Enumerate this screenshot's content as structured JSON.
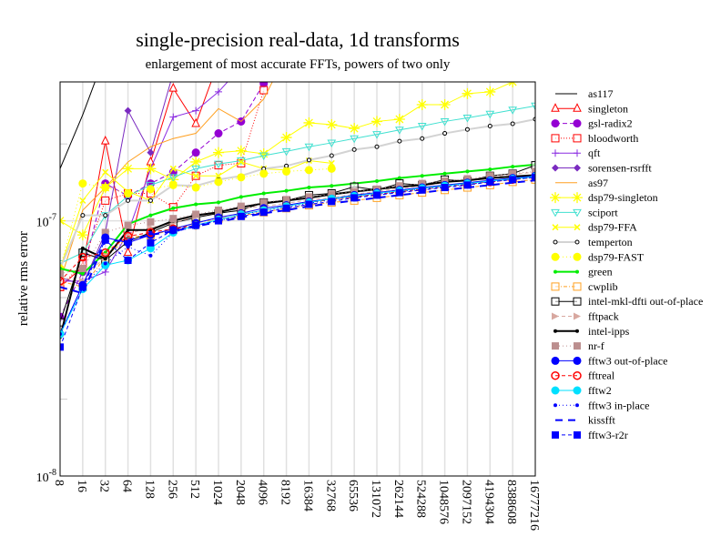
{
  "chart_data": {
    "type": "line",
    "title": "single-precision real-data, 1d transforms",
    "subtitle": "enlargement of most accurate FFTs, powers of two only",
    "xlabel": "",
    "ylabel": "relative rms error",
    "x_scale": "log2",
    "y_scale": "log10",
    "ylim": [
      1e-08,
      3.5e-07
    ],
    "y_ticks": [
      {
        "value": 1e-08,
        "base": "10",
        "exp": "-8"
      },
      {
        "value": 1e-07,
        "base": "10",
        "exp": "-7"
      }
    ],
    "y_minor_ticks": [
      2e-08,
      5e-08,
      2e-07
    ],
    "grid": true,
    "legend_position": "right",
    "x": [
      8,
      16,
      32,
      64,
      128,
      256,
      512,
      1024,
      2048,
      4096,
      8192,
      16384,
      32768,
      65536,
      131072,
      262144,
      524288,
      1048576,
      2097152,
      4194304,
      8388608,
      16777216
    ],
    "x_tick_labels": [
      "8",
      "16",
      "32",
      "64",
      "128",
      "256",
      "512",
      "1024",
      "2048",
      "4096",
      "8192",
      "16384",
      "32768",
      "65536",
      "131072",
      "262144",
      "524288",
      "1048576",
      "2097152",
      "4194304",
      "8388608",
      "16777216"
    ],
    "series": [
      {
        "name": "as117",
        "color": "#000000",
        "dash": "",
        "marker": "none",
        "width": 1,
        "values": [
          1.6e-07,
          2.6e-07,
          4.5e-07,
          7e-07
        ]
      },
      {
        "name": "singleton",
        "color": "#ff0000",
        "dash": "",
        "marker": "triangle-up-open",
        "width": 1,
        "values": [
          5.5e-08,
          6.6e-08,
          2.05e-07,
          7.5e-08,
          1.7e-07,
          3.3e-07,
          2.4e-07,
          4.2e-07,
          6e-07
        ]
      },
      {
        "name": "gsl-radix2",
        "color": "#9400d3",
        "dash": "5,3",
        "marker": "circle-filled",
        "width": 1,
        "values": [
          4.2e-08,
          6.3e-08,
          1.4e-07,
          1.25e-07,
          1.4e-07,
          1.55e-07,
          1.85e-07,
          2.2e-07,
          2.45e-07,
          3.45e-07
        ]
      },
      {
        "name": "bloodworth",
        "color": "#ff0000",
        "dash": "1,2",
        "marker": "square-open",
        "width": 1,
        "values": [
          5.5e-08,
          6.8e-08,
          1.2e-07,
          1.28e-07,
          1.28e-07,
          1.13e-07,
          1.5e-07,
          1.65e-07,
          1.68e-07,
          3.25e-07
        ]
      },
      {
        "name": "qft",
        "color": "#8a2be2",
        "dash": "",
        "marker": "plus",
        "width": 1,
        "values": [
          5.8e-08,
          5.8e-08,
          6.3e-08,
          9e-08,
          1.6e-07,
          2.55e-07,
          2.7e-07,
          3.2e-07,
          4e-07,
          5e-07
        ]
      },
      {
        "name": "sorensen-rsrfft",
        "color": "#7a2bc0",
        "dash": "",
        "marker": "diamond-filled",
        "width": 1,
        "values": [
          6e-08,
          5.6e-08,
          9e-08,
          2.7e-07,
          1.85e-07,
          3.8e-07,
          5e-07
        ]
      },
      {
        "name": "as97",
        "color": "#ffa020",
        "dash": "",
        "marker": "none",
        "width": 1,
        "values": [
          5.8e-08,
          1.1e-07,
          1.35e-07,
          1.7e-07,
          1.95e-07,
          2.1e-07,
          2.2e-07,
          2.75e-07,
          2.45e-07,
          3e-07,
          4.5e-07
        ]
      },
      {
        "name": "dsp79-singleton",
        "color": "#ffff00",
        "dash": "",
        "marker": "asterisk",
        "width": 1,
        "values": [
          1e-07,
          8.8e-08,
          1.35e-07,
          1.6e-07,
          1.6e-07,
          1.45e-07,
          1.7e-07,
          1.85e-07,
          1.88e-07,
          1.83e-07,
          2.12e-07,
          2.42e-07,
          2.38e-07,
          2.3e-07,
          2.45e-07,
          2.5e-07,
          2.85e-07,
          2.85e-07,
          3.15e-07,
          3.2e-07,
          3.5e-07
        ]
      },
      {
        "name": "sciport",
        "color": "#40e0d0",
        "dash": "",
        "marker": "triangle-down-open",
        "width": 1,
        "values": [
          6.8e-08,
          7.5e-08,
          1.05e-07,
          1.25e-07,
          1.38e-07,
          1.48e-07,
          1.6e-07,
          1.67e-07,
          1.72e-07,
          1.8e-07,
          1.87e-07,
          1.95e-07,
          2.02e-07,
          2.1e-07,
          2.18e-07,
          2.27e-07,
          2.35e-07,
          2.45e-07,
          2.53e-07,
          2.62e-07,
          2.72e-07,
          2.82e-07
        ]
      },
      {
        "name": "dsp79-FFA",
        "color": "#ffff00",
        "dash": "",
        "marker": "x",
        "width": 1,
        "values": [
          6.5e-08,
          1.2e-07,
          1.55e-07,
          1.3e-07,
          1.2e-07,
          1.6e-07,
          1.5e-07,
          1.5e-07,
          1.7e-07,
          1.6e-07,
          1.58e-07,
          1.72e-07,
          1.68e-07
        ]
      },
      {
        "name": "temperton",
        "color": "#d3d3d3",
        "dash": "",
        "marker": "circle-small-open",
        "width": 2,
        "values": [
          6.5e-08,
          1.05e-07,
          1.05e-07,
          1.2e-07,
          1.2e-07,
          1.38e-07,
          1.37e-07,
          1.45e-07,
          1.5e-07,
          1.6e-07,
          1.64e-07,
          1.73e-07,
          1.8e-07,
          1.9e-07,
          1.95e-07,
          2.05e-07,
          2.1e-07,
          2.2e-07,
          2.28e-07,
          2.35e-07,
          2.4e-07,
          2.5e-07
        ]
      },
      {
        "name": "dsp79-FAST",
        "color": "#ffff00",
        "dash": "1,3",
        "marker": "circle-filled",
        "width": 1,
        "values": [
          6.5e-08,
          1.4e-07,
          1.35e-07,
          1.28e-07,
          1.33e-07,
          1.38e-07,
          1.35e-07,
          1.42e-07,
          1.48e-07,
          1.53e-07,
          1.56e-07,
          1.58e-07,
          1.6e-07
        ]
      },
      {
        "name": "green",
        "color": "#00ee00",
        "dash": "",
        "marker": "dot",
        "width": 2,
        "values": [
          6.5e-08,
          6.2e-08,
          7.5e-08,
          9.7e-08,
          1.05e-07,
          1.12e-07,
          1.16e-07,
          1.18e-07,
          1.24e-07,
          1.28e-07,
          1.31e-07,
          1.35e-07,
          1.37e-07,
          1.4e-07,
          1.43e-07,
          1.47e-07,
          1.5e-07,
          1.53e-07,
          1.56e-07,
          1.59e-07,
          1.63e-07,
          1.66e-07
        ]
      },
      {
        "name": "cwplib",
        "color": "#ffa020",
        "dash": "4,2,1,2",
        "marker": "square-open",
        "width": 1,
        "values": [
          5.8e-08,
          5.5e-08,
          7.2e-08,
          8.6e-08,
          8.8e-08,
          9.2e-08,
          9.8e-08,
          1.02e-07,
          1.05e-07,
          1.08e-07,
          1.12e-07,
          1.15e-07,
          1.18e-07,
          1.2e-07,
          1.23e-07,
          1.26e-07,
          1.29e-07,
          1.32e-07,
          1.35e-07,
          1.38e-07,
          1.42e-07,
          1.45e-07
        ]
      },
      {
        "name": "intel-mkl-dfti out-of-place",
        "color": "#000000",
        "dash": "",
        "marker": "square-open",
        "width": 1,
        "values": [
          4e-08,
          7.5e-08,
          7e-08,
          8.3e-08,
          9e-08,
          9.8e-08,
          1.03e-07,
          1.07e-07,
          1.1e-07,
          1.18e-07,
          1.2e-07,
          1.26e-07,
          1.28e-07,
          1.36e-07,
          1.32e-07,
          1.4e-07,
          1.38e-07,
          1.45e-07,
          1.43e-07,
          1.5e-07,
          1.53e-07,
          1.65e-07
        ]
      },
      {
        "name": "fftpack",
        "color": "#d8a8a0",
        "dash": "4,3",
        "marker": "triangle-right-filled",
        "width": 1,
        "values": [
          6e-08,
          5.8e-08,
          7.3e-08,
          8.9e-08,
          9.4e-08,
          9.8e-08,
          1.04e-07,
          1.08e-07,
          1.12e-07,
          1.14e-07,
          1.17e-07,
          1.21e-07,
          1.23e-07,
          1.27e-07,
          1.3e-07,
          1.34e-07,
          1.37e-07,
          1.41e-07,
          1.45e-07,
          1.48e-07,
          1.52e-07,
          1.55e-07
        ]
      },
      {
        "name": "intel-ipps",
        "color": "#000000",
        "dash": "",
        "marker": "dot",
        "width": 2,
        "values": [
          3.5e-08,
          7.8e-08,
          7.1e-08,
          9.2e-08,
          9.2e-08,
          1e-07,
          1.05e-07,
          1.08e-07,
          1.13e-07,
          1.17e-07,
          1.2e-07,
          1.23e-07,
          1.27e-07,
          1.3e-07,
          1.33e-07,
          1.36e-07,
          1.38e-07,
          1.42e-07,
          1.44e-07,
          1.47e-07,
          1.49e-07,
          1.51e-07
        ]
      },
      {
        "name": "nr-f",
        "color": "#bc8f8f",
        "dash": "1,3",
        "marker": "square-filled",
        "width": 1,
        "values": [
          6.2e-08,
          6.5e-08,
          9e-08,
          9.6e-08,
          9.9e-08,
          1.02e-07,
          1.06e-07,
          1.1e-07,
          1.14e-07,
          1.18e-07,
          1.21e-07,
          1.24e-07,
          1.27e-07,
          1.3e-07,
          1.33e-07,
          1.37e-07,
          1.4e-07,
          1.43e-07,
          1.46e-07,
          1.5e-07,
          1.53e-07,
          1.56e-07
        ]
      },
      {
        "name": "fftw3 out-of-place",
        "color": "#0000ff",
        "dash": "",
        "marker": "circle-filled",
        "width": 1,
        "values": [
          3.6e-08,
          5.6e-08,
          8.6e-08,
          8.2e-08,
          8.8e-08,
          9.3e-08,
          9.8e-08,
          1.03e-07,
          1.07e-07,
          1.12e-07,
          1.15e-07,
          1.19e-07,
          1.22e-07,
          1.26e-07,
          1.29e-07,
          1.32e-07,
          1.35e-07,
          1.38e-07,
          1.41e-07,
          1.44e-07,
          1.47e-07,
          1.5e-07
        ]
      },
      {
        "name": "fftreal",
        "color": "#ff0000",
        "dash": "4,3",
        "marker": "circle-open",
        "width": 1,
        "values": [
          5.8e-08,
          7.2e-08,
          7.5e-08,
          8.7e-08,
          9e-08,
          9.3e-08,
          9.6e-08,
          1.01e-07,
          1.06e-07,
          1.1e-07,
          1.14e-07,
          1.18e-07,
          1.21e-07,
          1.24e-07,
          1.27e-07,
          1.3e-07,
          1.33e-07,
          1.36e-07,
          1.39e-07,
          1.42e-07,
          1.45e-07,
          1.48e-07
        ]
      },
      {
        "name": "fftw2",
        "color": "#00e0ff",
        "dash": "",
        "marker": "circle-filled",
        "width": 1,
        "values": [
          3.6e-08,
          5.4e-08,
          6.7e-08,
          7e-08,
          7.8e-08,
          9e-08,
          9.6e-08,
          1.01e-07,
          1.06e-07,
          1.1e-07,
          1.14e-07,
          1.18e-07,
          1.22e-07,
          1.25e-07,
          1.28e-07,
          1.31e-07,
          1.34e-07,
          1.37e-07,
          1.4e-07,
          1.43e-07,
          1.46e-07,
          1.49e-07
        ]
      },
      {
        "name": "fftw3 in-place",
        "color": "#0000ff",
        "dash": "1,3",
        "marker": "dot",
        "width": 1,
        "values": [
          3.6e-08,
          5.6e-08,
          6.8e-08,
          7.9e-08,
          7.3e-08,
          9e-08,
          9.5e-08,
          1e-07,
          1.05e-07,
          1.1e-07,
          1.13e-07,
          1.17e-07,
          1.21e-07,
          1.24e-07,
          1.27e-07,
          1.3e-07,
          1.33e-07,
          1.36e-07,
          1.39e-07,
          1.42e-07,
          1.45e-07,
          1.48e-07
        ]
      },
      {
        "name": "kissfft",
        "color": "#0000ff",
        "dash": "8,6",
        "marker": "none",
        "width": 2,
        "values": [
          5.5e-08,
          5.2e-08,
          8.3e-08,
          8.4e-08,
          8.8e-08,
          9.1e-08,
          9.5e-08,
          9.9e-08,
          1.03e-07,
          1.07e-07,
          1.1e-07,
          1.14e-07,
          1.17e-07,
          1.2e-07,
          1.23e-07,
          1.26e-07,
          1.29e-07,
          1.32e-07,
          1.35e-07,
          1.38e-07,
          1.41e-07,
          1.44e-07
        ]
      },
      {
        "name": "fftw3-r2r",
        "color": "#0000ff",
        "dash": "4,3",
        "marker": "square-filled",
        "width": 1,
        "values": [
          3.2e-08,
          5.5e-08,
          8.4e-08,
          7e-08,
          8.2e-08,
          9.2e-08,
          9.6e-08,
          1e-07,
          1.04e-07,
          1.08e-07,
          1.12e-07,
          1.16e-07,
          1.19e-07,
          1.23e-07,
          1.26e-07,
          1.29e-07,
          1.32e-07,
          1.35e-07,
          1.38e-07,
          1.42e-07,
          1.45e-07,
          1.48e-07
        ]
      }
    ]
  }
}
